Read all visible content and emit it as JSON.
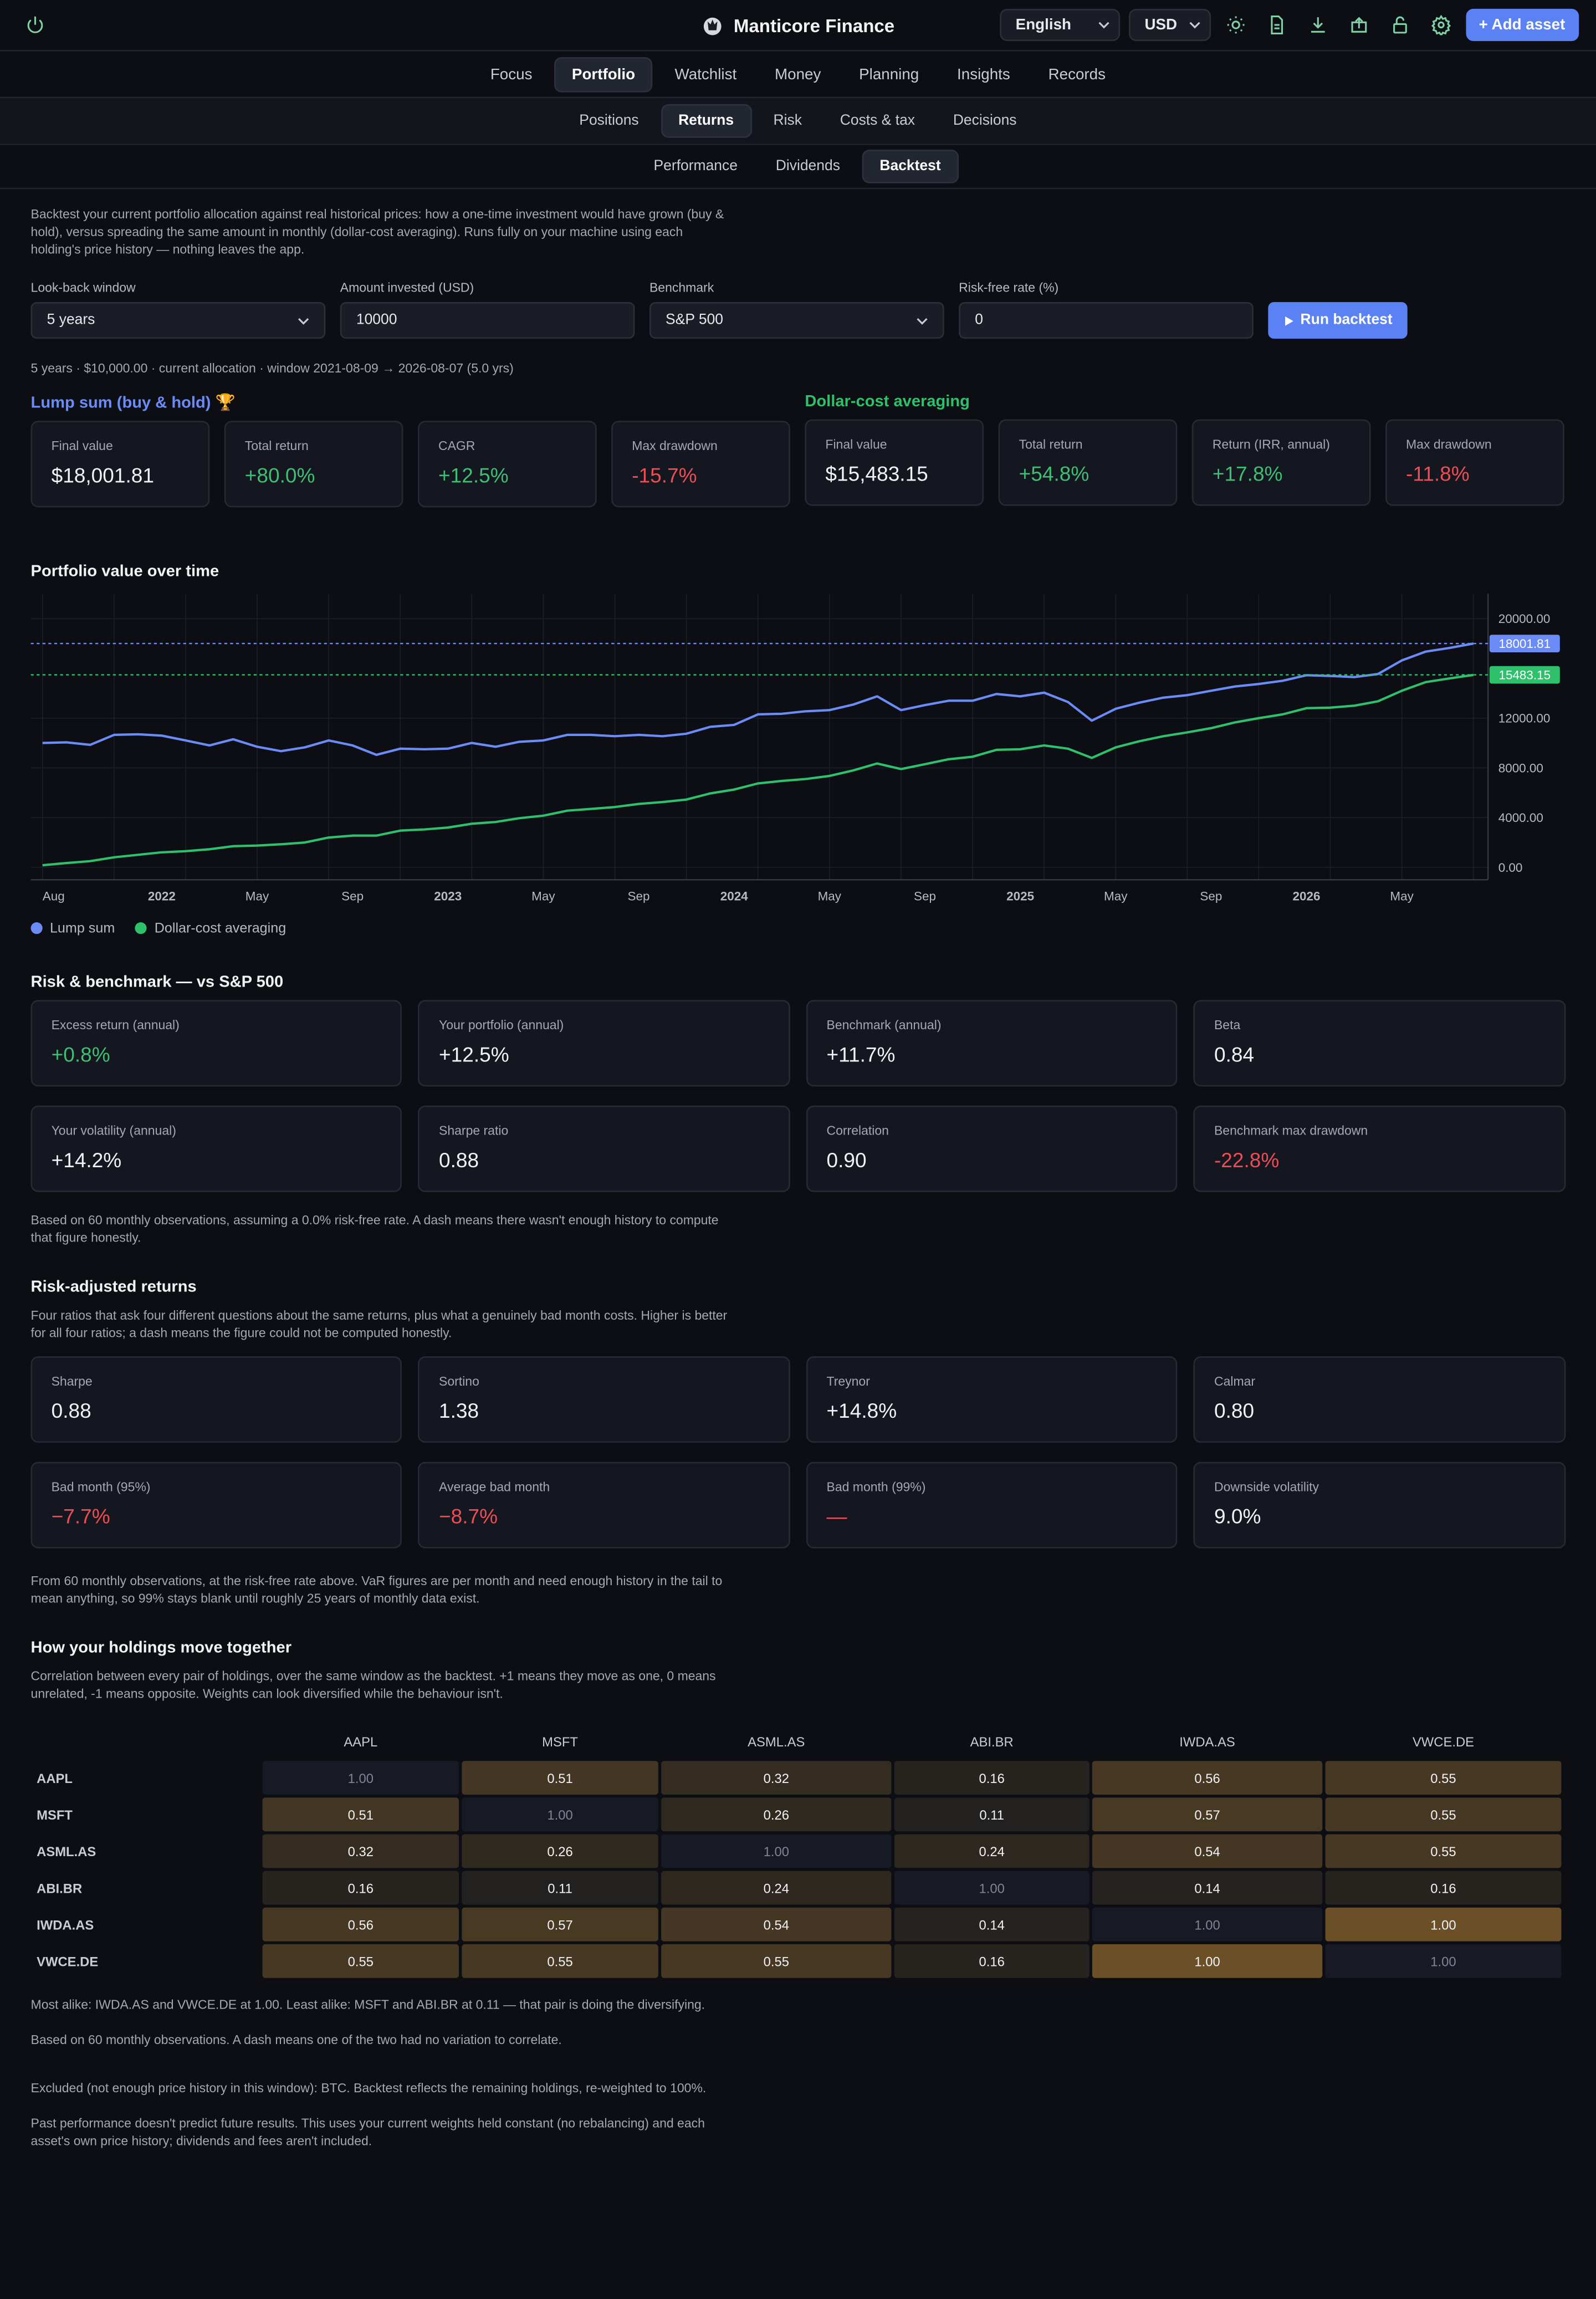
{
  "app": {
    "title": "Manticore Finance",
    "language": "English",
    "currency": "USD",
    "add_asset": "+ Add asset"
  },
  "nav": {
    "primary": [
      "Focus",
      "Portfolio",
      "Watchlist",
      "Money",
      "Planning",
      "Insights",
      "Records"
    ],
    "primary_active": "Portfolio",
    "secondary": [
      "Positions",
      "Returns",
      "Risk",
      "Costs & tax",
      "Decisions"
    ],
    "secondary_active": "Returns",
    "tertiary": [
      "Performance",
      "Dividends",
      "Backtest"
    ],
    "tertiary_active": "Backtest"
  },
  "intro": "Backtest your current portfolio allocation against real historical prices: how a one-time investment would have grown (buy & hold), versus spreading the same amount in monthly (dollar-cost averaging). Runs fully on your machine using each holding's price history — nothing leaves the app.",
  "form": {
    "lookback_label": "Look-back window",
    "lookback_value": "5 years",
    "amount_label": "Amount invested (USD)",
    "amount_value": "10000",
    "benchmark_label": "Benchmark",
    "benchmark_value": "S&P 500",
    "rf_label": "Risk-free rate (%)",
    "rf_value": "0",
    "run_label": "Run backtest"
  },
  "meta": "5 years · $10,000.00 · current allocation · window 2021-08-09 → 2026-08-07 (5.0 yrs)",
  "lump": {
    "title": "Lump sum (buy & hold) 🏆",
    "cards": [
      {
        "label": "Final value",
        "value": "$18,001.81",
        "tone": ""
      },
      {
        "label": "Total return",
        "value": "+80.0%",
        "tone": "pos"
      },
      {
        "label": "CAGR",
        "value": "+12.5%",
        "tone": "pos"
      },
      {
        "label": "Max drawdown",
        "value": "-15.7%",
        "tone": "neg"
      }
    ]
  },
  "dca": {
    "title": "Dollar-cost averaging",
    "cards": [
      {
        "label": "Final value",
        "value": "$15,483.15",
        "tone": ""
      },
      {
        "label": "Total return",
        "value": "+54.8%",
        "tone": "pos"
      },
      {
        "label": "Return (IRR, annual)",
        "value": "+17.8%",
        "tone": "pos"
      },
      {
        "label": "Max drawdown",
        "value": "-11.8%",
        "tone": "neg"
      }
    ]
  },
  "chart_title": "Portfolio value over time",
  "chart_data": {
    "type": "line",
    "x": [
      "2021-08",
      "2021-09",
      "2021-10",
      "2021-11",
      "2021-12",
      "2022-01",
      "2022-02",
      "2022-03",
      "2022-04",
      "2022-05",
      "2022-06",
      "2022-07",
      "2022-08",
      "2022-09",
      "2022-10",
      "2022-11",
      "2022-12",
      "2023-01",
      "2023-02",
      "2023-03",
      "2023-04",
      "2023-05",
      "2023-06",
      "2023-07",
      "2023-08",
      "2023-09",
      "2023-10",
      "2023-11",
      "2023-12",
      "2024-01",
      "2024-02",
      "2024-03",
      "2024-04",
      "2024-05",
      "2024-06",
      "2024-07",
      "2024-08",
      "2024-09",
      "2024-10",
      "2024-11",
      "2024-12",
      "2025-01",
      "2025-02",
      "2025-03",
      "2025-04",
      "2025-05",
      "2025-06",
      "2025-07",
      "2025-08",
      "2025-09",
      "2025-10",
      "2025-11",
      "2025-12",
      "2026-01",
      "2026-02",
      "2026-03",
      "2026-04",
      "2026-05",
      "2026-06",
      "2026-07",
      "2026-08"
    ],
    "series": [
      {
        "name": "Lump sum",
        "color": "#6b8cf7",
        "values": [
          10000,
          10050,
          9850,
          10650,
          10700,
          10600,
          10200,
          9800,
          10300,
          9700,
          9350,
          9650,
          10200,
          9800,
          9050,
          9550,
          9500,
          9550,
          10000,
          9700,
          10100,
          10200,
          10650,
          10650,
          10550,
          10650,
          10550,
          10750,
          11300,
          11450,
          12300,
          12350,
          12550,
          12650,
          13100,
          13750,
          12650,
          13050,
          13400,
          13400,
          13950,
          13750,
          14050,
          13300,
          11800,
          12750,
          13250,
          13650,
          13850,
          14200,
          14550,
          14750,
          15000,
          15450,
          15400,
          15300,
          15550,
          16650,
          17350,
          17650,
          18001.81
        ]
      },
      {
        "name": "Dollar-cost averaging",
        "color": "#2ec06b",
        "values": [
          166.67,
          350,
          500,
          800,
          1000,
          1200,
          1300,
          1450,
          1700,
          1750,
          1850,
          2000,
          2400,
          2550,
          2550,
          2950,
          3050,
          3200,
          3500,
          3650,
          3950,
          4150,
          4550,
          4700,
          4850,
          5100,
          5250,
          5450,
          5950,
          6250,
          6750,
          6950,
          7100,
          7350,
          7800,
          8350,
          7900,
          8300,
          8700,
          8900,
          9450,
          9500,
          9800,
          9550,
          8800,
          9650,
          10150,
          10550,
          10850,
          11200,
          11650,
          12000,
          12300,
          12800,
          12850,
          13000,
          13350,
          14200,
          14900,
          15200,
          15483.15
        ]
      }
    ],
    "ylim": [
      -1000,
      22000
    ],
    "yticks": [
      "0.00",
      "4000.00",
      "8000.00",
      "12000.00",
      "20000.00"
    ],
    "xticks": [
      "Aug",
      "2022",
      "May",
      "Sep",
      "2023",
      "May",
      "Sep",
      "2024",
      "May",
      "Sep",
      "2025",
      "May",
      "Sep",
      "2026",
      "May"
    ],
    "final_labels": [
      "18001.81",
      "15483.15"
    ]
  },
  "risk": {
    "title": "Risk & benchmark — vs S&P 500",
    "cards": [
      {
        "label": "Excess return (annual)",
        "value": "+0.8%",
        "tone": "pos"
      },
      {
        "label": "Your portfolio (annual)",
        "value": "+12.5%",
        "tone": ""
      },
      {
        "label": "Benchmark (annual)",
        "value": "+11.7%",
        "tone": ""
      },
      {
        "label": "Beta",
        "value": "0.84",
        "tone": ""
      },
      {
        "label": "Your volatility (annual)",
        "value": "+14.2%",
        "tone": ""
      },
      {
        "label": "Sharpe ratio",
        "value": "0.88",
        "tone": ""
      },
      {
        "label": "Correlation",
        "value": "0.90",
        "tone": ""
      },
      {
        "label": "Benchmark max drawdown",
        "value": "-22.8%",
        "tone": "neg"
      }
    ],
    "note": "Based on 60 monthly observations, assuming a 0.0% risk-free rate. A dash means there wasn't enough history to compute that figure honestly."
  },
  "riskadj": {
    "title": "Risk-adjusted returns",
    "desc": "Four ratios that ask four different questions about the same returns, plus what a genuinely bad month costs. Higher is better for all four ratios; a dash means the figure could not be computed honestly.",
    "cards": [
      {
        "label": "Sharpe",
        "value": "0.88",
        "tone": ""
      },
      {
        "label": "Sortino",
        "value": "1.38",
        "tone": ""
      },
      {
        "label": "Treynor",
        "value": "+14.8%",
        "tone": ""
      },
      {
        "label": "Calmar",
        "value": "0.80",
        "tone": ""
      },
      {
        "label": "Bad month (95%)",
        "value": "−7.7%",
        "tone": "neg"
      },
      {
        "label": "Average bad month",
        "value": "−8.7%",
        "tone": "neg"
      },
      {
        "label": "Bad month (99%)",
        "value": "—",
        "tone": "neg"
      },
      {
        "label": "Downside volatility",
        "value": "9.0%",
        "tone": ""
      }
    ],
    "note": "From 60 monthly observations, at the risk-free rate above. VaR figures are per month and need enough history in the tail to mean anything, so 99% stays blank until roughly 25 years of monthly data exist."
  },
  "corr": {
    "title": "How your holdings move together",
    "desc": "Correlation between every pair of holdings, over the same window as the backtest. +1 means they move as one, 0 means unrelated, -1 means opposite. Weights can look diversified while the behaviour isn't.",
    "headers": [
      "AAPL",
      "MSFT",
      "ASML.AS",
      "ABI.BR",
      "IWDA.AS",
      "VWCE.DE"
    ],
    "rows": [
      {
        "label": "AAPL",
        "cells": [
          "1.00",
          "0.51",
          "0.32",
          "0.16",
          "0.56",
          "0.55"
        ]
      },
      {
        "label": "MSFT",
        "cells": [
          "0.51",
          "1.00",
          "0.26",
          "0.11",
          "0.57",
          "0.55"
        ]
      },
      {
        "label": "ASML.AS",
        "cells": [
          "0.32",
          "0.26",
          "1.00",
          "0.24",
          "0.54",
          "0.55"
        ]
      },
      {
        "label": "ABI.BR",
        "cells": [
          "0.16",
          "0.11",
          "0.24",
          "1.00",
          "0.14",
          "0.16"
        ]
      },
      {
        "label": "IWDA.AS",
        "cells": [
          "0.56",
          "0.57",
          "0.54",
          "0.14",
          "1.00",
          "1.00"
        ]
      },
      {
        "label": "VWCE.DE",
        "cells": [
          "0.55",
          "0.55",
          "0.55",
          "0.16",
          "1.00",
          "1.00"
        ]
      }
    ],
    "summary": "Most alike: IWDA.AS and VWCE.DE at 1.00. Least alike: MSFT and ABI.BR at 0.11 — that pair is doing the diversifying.",
    "note": "Based on 60 monthly observations. A dash means one of the two had no variation to correlate."
  },
  "excluded": "Excluded (not enough price history in this window): BTC. Backtest reflects the remaining holdings, re-weighted to 100%.",
  "disclaimer": "Past performance doesn't predict future results. This uses your current weights held constant (no rebalancing) and each asset's own price history; dividends and fees aren't included."
}
